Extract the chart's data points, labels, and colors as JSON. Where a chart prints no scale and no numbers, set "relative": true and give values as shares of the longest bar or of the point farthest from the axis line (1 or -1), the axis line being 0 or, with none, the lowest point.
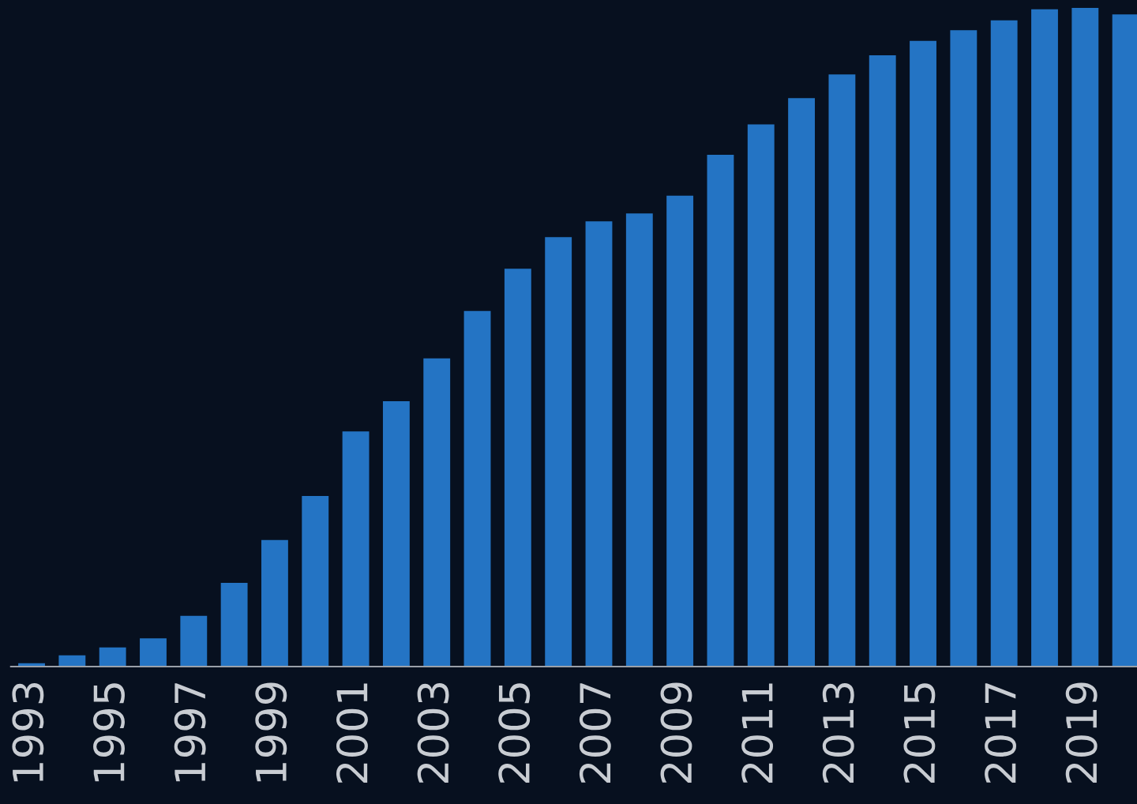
{
  "chart_data": {
    "type": "bar",
    "relative": true,
    "categories": [
      "1993",
      null,
      "1995",
      null,
      "1997",
      null,
      "1999",
      null,
      "2001",
      null,
      "2003",
      null,
      "2005",
      null,
      "2007",
      null,
      "2009",
      null,
      "2011",
      null,
      "2013",
      null,
      "2015",
      null,
      "2017",
      null,
      "2019",
      null
    ],
    "values": [
      0.005,
      0.017,
      0.029,
      0.043,
      0.077,
      0.127,
      0.192,
      0.259,
      0.357,
      0.403,
      0.468,
      0.54,
      0.604,
      0.652,
      0.676,
      0.688,
      0.715,
      0.777,
      0.823,
      0.863,
      0.899,
      0.928,
      0.95,
      0.966,
      0.981,
      0.998,
      1,
      0.99
    ],
    "color": "#2474c4",
    "grid": false,
    "legend": false
  }
}
